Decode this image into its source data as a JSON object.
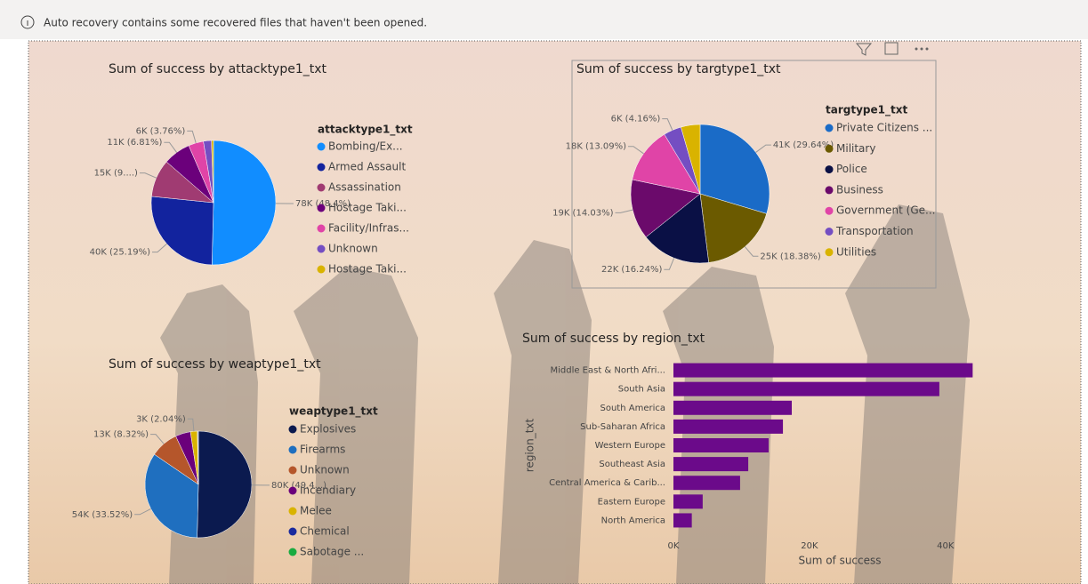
{
  "notification": "Auto recovery contains some recovered files that haven't been opened.",
  "chart_data": [
    {
      "type": "pie",
      "title": "Sum of success by attacktype1_txt",
      "legend_title": "attacktype1_txt",
      "categories": [
        "Bombing/Ex...",
        "Armed Assault",
        "Assassination",
        "Hostage Taki...",
        "Facility/Infras...",
        "Unknown",
        "Hostage Taki..."
      ],
      "colors": [
        "#118dff",
        "#12239e",
        "#a03b72",
        "#6b007b",
        "#e044a7",
        "#744ec2",
        "#d9b300"
      ],
      "values": [
        48.4,
        25.19,
        9.4,
        6.81,
        3.76,
        2.0,
        0.5
      ],
      "value_labels": [
        "78K (48.4%)",
        "40K (25.19%)",
        "15K (9....)",
        "11K (6.81%)",
        "6K (3.76%)",
        null,
        null
      ]
    },
    {
      "type": "pie",
      "title": "Sum of success by targtype1_txt",
      "legend_title": "targtype1_txt",
      "categories": [
        "Private Citizens ...",
        "Military",
        "Police",
        "Business",
        "Government (Ge...",
        "Transportation",
        "Utilities"
      ],
      "colors": [
        "#1a6bc7",
        "#6b5a00",
        "#0a1045",
        "#6b0a6b",
        "#e044a7",
        "#744ec2",
        "#d9b300"
      ],
      "values": [
        29.64,
        18.38,
        16.24,
        14.03,
        13.09,
        4.16,
        4.46
      ],
      "value_labels": [
        "41K (29.64%)",
        "25K (18.38%)",
        "22K (16.24%)",
        "19K (14.03%)",
        "18K (13.09%)",
        "6K (4.16%)",
        null
      ]
    },
    {
      "type": "pie",
      "title": "Sum of success by weaptype1_txt",
      "legend_title": "weaptype1_txt",
      "categories": [
        "Explosives",
        "Firearms",
        "Unknown",
        "Incendiary",
        "Melee",
        "Chemical",
        "Sabotage ..."
      ],
      "colors": [
        "#0b1a4f",
        "#1f6fbf",
        "#b5562b",
        "#6b007b",
        "#d9b300",
        "#1a2a9e",
        "#1aab40"
      ],
      "values": [
        49.4,
        33.52,
        8.32,
        4.5,
        2.04,
        0.2,
        0.1
      ],
      "value_labels": [
        "80K (49.4...)",
        "54K (33.52%)",
        "13K (8.32%)",
        null,
        "3K (2.04%)",
        null,
        null
      ]
    },
    {
      "type": "bar",
      "title": "Sum of success by region_txt",
      "y_label": "region_txt",
      "x_label": "Sum of success",
      "color": "#6b0a8a",
      "categories": [
        "Middle East & North Afri...",
        "South Asia",
        "South America",
        "Sub-Saharan Africa",
        "Western Europe",
        "Southeast Asia",
        "Central America & Carib...",
        "Eastern Europe",
        "North America"
      ],
      "values": [
        44000,
        39100,
        17400,
        16100,
        14000,
        11000,
        9800,
        4300,
        2700
      ],
      "xlim": [
        0,
        45000
      ],
      "xticks": [
        {
          "value": 0,
          "label": "0K"
        },
        {
          "value": 20000,
          "label": "20K"
        },
        {
          "value": 40000,
          "label": "40K"
        }
      ]
    }
  ]
}
